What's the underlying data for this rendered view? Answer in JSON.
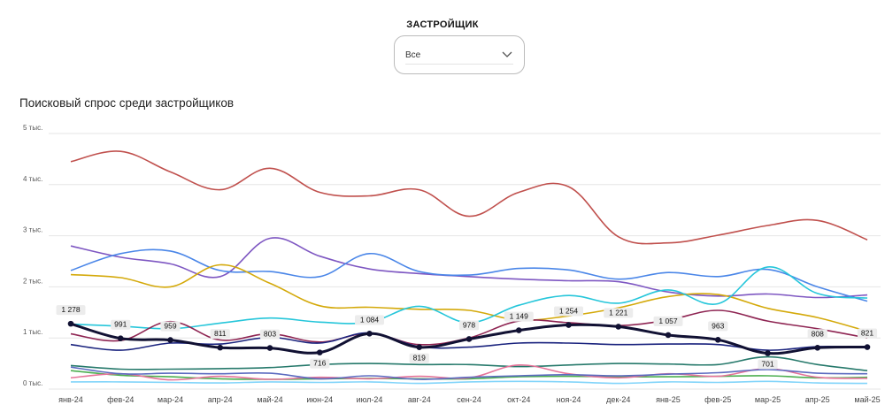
{
  "filter": {
    "title": "ЗАСТРОЙЩИК",
    "selected": "Все"
  },
  "chart_data": {
    "type": "line",
    "title": "Поисковый спрос среди застройщиков",
    "xlabel": "",
    "ylabel": "",
    "ylim": [
      0,
      5000
    ],
    "y_ticks": [
      0,
      1000,
      2000,
      3000,
      4000,
      5000
    ],
    "y_tick_labels": [
      "0 тыс.",
      "1 тыс.",
      "2 тыс.",
      "3 тыс.",
      "4 тыс.",
      "5 тыс."
    ],
    "grid": true,
    "legend": "none",
    "categories": [
      "янв-24",
      "фев-24",
      "мар-24",
      "апр-24",
      "май-24",
      "июн-24",
      "июл-24",
      "авг-24",
      "сен-24",
      "окт-24",
      "ноя-24",
      "дек-24",
      "янв-25",
      "фев-25",
      "мар-25",
      "апр-25",
      "май-25"
    ],
    "series": [
      {
        "color": "#c0504d",
        "values": [
          4450,
          4650,
          4250,
          3900,
          4320,
          3850,
          3780,
          3900,
          3380,
          3850,
          3960,
          2980,
          2860,
          3010,
          3200,
          3300,
          2920
        ]
      },
      {
        "color": "#7e57c2",
        "values": [
          2800,
          2580,
          2450,
          2200,
          2950,
          2600,
          2350,
          2260,
          2200,
          2150,
          2120,
          2100,
          1900,
          1820,
          1860,
          1790,
          1840
        ]
      },
      {
        "color": "#4a86e8",
        "values": [
          2320,
          2650,
          2700,
          2320,
          2300,
          2200,
          2650,
          2300,
          2230,
          2360,
          2330,
          2150,
          2280,
          2200,
          2340,
          2000,
          1720
        ]
      },
      {
        "color": "#d4a90a",
        "values": [
          2240,
          2180,
          2000,
          2430,
          2070,
          1630,
          1600,
          1560,
          1540,
          1350,
          1430,
          1590,
          1810,
          1850,
          1580,
          1400,
          1130
        ]
      },
      {
        "color": "#26c6da",
        "values": [
          1270,
          1230,
          1180,
          1290,
          1390,
          1310,
          1310,
          1620,
          1300,
          1640,
          1830,
          1680,
          1940,
          1670,
          2390,
          1870,
          1780
        ]
      },
      {
        "color": "#8e2452",
        "values": [
          1080,
          950,
          1320,
          960,
          1080,
          920,
          1090,
          870,
          1000,
          1330,
          1300,
          1240,
          1350,
          1540,
          1330,
          1180,
          1000
        ]
      },
      {
        "color": "#1a237e",
        "values": [
          870,
          760,
          900,
          880,
          1010,
          900,
          1100,
          830,
          820,
          900,
          900,
          870,
          880,
          870,
          760,
          830,
          820
        ]
      },
      {
        "color": "#26796b",
        "values": [
          460,
          390,
          390,
          400,
          420,
          480,
          500,
          480,
          480,
          440,
          470,
          500,
          490,
          480,
          630,
          480,
          360
        ]
      },
      {
        "color": "#4caf50",
        "values": [
          360,
          270,
          240,
          200,
          190,
          200,
          210,
          200,
          200,
          240,
          250,
          240,
          240,
          250,
          260,
          220,
          230
        ]
      },
      {
        "color": "#e57399",
        "values": [
          220,
          300,
          180,
          250,
          190,
          230,
          200,
          250,
          220,
          470,
          300,
          220,
          300,
          250,
          400,
          230,
          210
        ]
      },
      {
        "color": "#5c6bc0",
        "values": [
          430,
          300,
          310,
          300,
          310,
          200,
          260,
          190,
          230,
          260,
          280,
          260,
          290,
          320,
          380,
          310,
          300
        ]
      },
      {
        "color": "#81d4fa",
        "values": [
          140,
          140,
          130,
          120,
          140,
          130,
          140,
          110,
          140,
          150,
          140,
          110,
          140,
          130,
          150,
          120,
          110
        ]
      },
      {
        "color": "#111133",
        "thick": true,
        "values": [
          1278,
          991,
          959,
          811,
          803,
          716,
          1084,
          819,
          978,
          1149,
          1254,
          1221,
          1057,
          963,
          701,
          808,
          821
        ],
        "labels": [
          "1 278",
          "991",
          "959",
          "811",
          "803",
          "716",
          "1 084",
          "819",
          "978",
          "1 149",
          "1 254",
          "1 221",
          "1 057",
          "963",
          "701",
          "808",
          "821"
        ]
      }
    ]
  }
}
